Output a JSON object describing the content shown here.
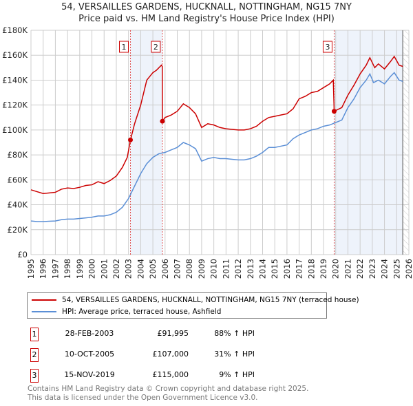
{
  "chart_data": {
    "type": "line",
    "title": "54, VERSAILLES GARDENS, HUCKNALL, NOTTINGHAM, NG15 7NY",
    "subtitle": "Price paid vs. HM Land Registry's House Price Index (HPI)",
    "xlim": [
      1995,
      2026
    ],
    "ylim": [
      0,
      180000
    ],
    "x_ticks": [
      "1995",
      "1996",
      "1997",
      "1998",
      "1999",
      "2000",
      "2001",
      "2002",
      "2003",
      "2004",
      "2005",
      "2006",
      "2007",
      "2008",
      "2009",
      "2010",
      "2011",
      "2012",
      "2013",
      "2014",
      "2015",
      "2016",
      "2017",
      "2018",
      "2019",
      "2020",
      "2021",
      "2022",
      "2023",
      "2024",
      "2025",
      "2026"
    ],
    "y_ticks": [
      {
        "v": 0,
        "label": "£0"
      },
      {
        "v": 20000,
        "label": "£20K"
      },
      {
        "v": 40000,
        "label": "£40K"
      },
      {
        "v": 60000,
        "label": "£60K"
      },
      {
        "v": 80000,
        "label": "£80K"
      },
      {
        "v": 100000,
        "label": "£100K"
      },
      {
        "v": 120000,
        "label": "£120K"
      },
      {
        "v": 140000,
        "label": "£140K"
      },
      {
        "v": 160000,
        "label": "£160K"
      },
      {
        "v": 180000,
        "label": "£180K"
      }
    ],
    "grid": true,
    "series": [
      {
        "name": "54, VERSAILLES GARDENS, HUCKNALL, NOTTINGHAM, NG15 7NY (terraced house)",
        "color": "#cc0000",
        "x": [
          1995,
          1995.5,
          1996,
          1996.5,
          1997,
          1997.5,
          1998,
          1998.5,
          1999,
          1999.5,
          2000,
          2000.5,
          2001,
          2001.5,
          2002,
          2002.5,
          2002.9,
          2003.16,
          2003.5,
          2004,
          2004.5,
          2005,
          2005.3,
          2005.7,
          2005.77,
          2005.78,
          2006,
          2006.5,
          2007,
          2007.5,
          2008,
          2008.5,
          2009,
          2009.5,
          2010,
          2010.5,
          2011,
          2011.5,
          2012,
          2012.5,
          2013,
          2013.5,
          2014,
          2014.5,
          2015,
          2015.5,
          2016,
          2016.5,
          2017,
          2017.5,
          2018,
          2018.5,
          2019,
          2019.5,
          2019.8,
          2019.86,
          2019.87,
          2020.5,
          2021,
          2021.5,
          2022,
          2022.5,
          2022.8,
          2023.2,
          2023.5,
          2024,
          2024.5,
          2024.8,
          2025.2,
          2025.5
        ],
        "y": [
          52000,
          50500,
          49000,
          49500,
          50000,
          52500,
          53500,
          53000,
          54000,
          55500,
          56000,
          58500,
          57000,
          59500,
          63000,
          70000,
          78000,
          91995,
          105000,
          120000,
          140000,
          146000,
          148000,
          152000,
          151000,
          107000,
          110000,
          112000,
          115000,
          121000,
          118000,
          113000,
          102000,
          105000,
          104000,
          102000,
          101000,
          100500,
          100000,
          100000,
          101000,
          103000,
          107000,
          110000,
          111000,
          112000,
          113000,
          117000,
          125000,
          127000,
          130000,
          131000,
          134000,
          137000,
          140000,
          120000,
          115000,
          118000,
          128000,
          136000,
          145000,
          152000,
          158000,
          150000,
          153000,
          149000,
          155000,
          159000,
          152000,
          151000
        ]
      },
      {
        "name": "HPI: Average price, terraced house, Ashfield",
        "color": "#5b8fd6",
        "x": [
          1995,
          1995.5,
          1996,
          1996.5,
          1997,
          1997.5,
          1998,
          1998.5,
          1999,
          1999.5,
          2000,
          2000.5,
          2001,
          2001.5,
          2002,
          2002.5,
          2003,
          2003.5,
          2004,
          2004.5,
          2005,
          2005.5,
          2006,
          2006.5,
          2007,
          2007.5,
          2008,
          2008.5,
          2009,
          2009.5,
          2010,
          2010.5,
          2011,
          2011.5,
          2012,
          2012.5,
          2013,
          2013.5,
          2014,
          2014.5,
          2015,
          2015.5,
          2016,
          2016.5,
          2017,
          2017.5,
          2018,
          2018.5,
          2019,
          2019.5,
          2020,
          2020.5,
          2021,
          2021.5,
          2022,
          2022.5,
          2022.8,
          2023.1,
          2023.5,
          2024,
          2024.5,
          2024.8,
          2025.2,
          2025.5
        ],
        "y": [
          27000,
          26500,
          26500,
          26800,
          27000,
          28000,
          28500,
          28500,
          29000,
          29500,
          30000,
          31000,
          31000,
          32000,
          34000,
          38000,
          45000,
          55000,
          65000,
          73000,
          78000,
          81000,
          82000,
          84000,
          86000,
          90000,
          88000,
          85000,
          75000,
          77000,
          78000,
          77000,
          77000,
          76500,
          76000,
          76000,
          77000,
          79000,
          82000,
          86000,
          86000,
          87000,
          88000,
          93000,
          96000,
          98000,
          100000,
          101000,
          103000,
          104000,
          106000,
          108000,
          118000,
          125000,
          134000,
          140000,
          145000,
          138000,
          140000,
          137000,
          143000,
          146000,
          140000,
          139000
        ]
      }
    ],
    "shaded_ranges": [
      [
        2003.16,
        2005.78
      ],
      [
        2019.87,
        2025.5
      ]
    ],
    "forecast_hatch_from": 2025.5,
    "sales": [
      {
        "n": "1",
        "x": 2003.16,
        "price": 91995,
        "date": "28-FEB-2003",
        "price_label": "£91,995",
        "hpi": "88% ↑ HPI"
      },
      {
        "n": "2",
        "x": 2005.78,
        "price": 107000,
        "date": "10-OCT-2005",
        "price_label": "£107,000",
        "hpi": "31% ↑ HPI"
      },
      {
        "n": "3",
        "x": 2019.87,
        "price": 115000,
        "date": "15-NOV-2019",
        "price_label": "£115,000",
        "hpi": "9% ↑ HPI"
      }
    ]
  },
  "footer": {
    "line1": "Contains HM Land Registry data © Crown copyright and database right 2025.",
    "line2": "This data is licensed under the Open Government Licence v3.0."
  }
}
